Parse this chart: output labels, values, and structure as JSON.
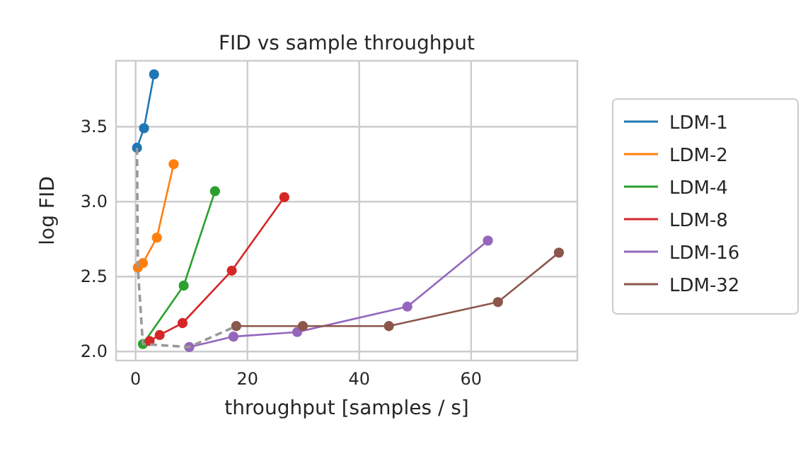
{
  "chart_data": {
    "type": "line",
    "title": "FID vs sample throughput",
    "xlabel": "throughput [samples / s]",
    "ylabel": "log FID",
    "xlim": [
      -3.5,
      79
    ],
    "ylim": [
      1.94,
      3.94
    ],
    "xticks": [
      0,
      20,
      40,
      60
    ],
    "yticks": [
      {
        "value": 2,
        "label": "2.0"
      },
      {
        "value": 2.5,
        "label": "2.5"
      },
      {
        "value": 3,
        "label": "3.0"
      },
      {
        "value": 3.5,
        "label": "3.5"
      }
    ],
    "grid": true,
    "legend": "right",
    "marker": "circle",
    "series": [
      {
        "name": "LDM-1",
        "color": "#1f77b4",
        "x": [
          0.25,
          1.5,
          3.3
        ],
        "values": [
          3.36,
          3.49,
          3.85
        ]
      },
      {
        "name": "LDM-2",
        "color": "#ff7f0e",
        "x": [
          0.4,
          1.3,
          3.8,
          6.8
        ],
        "values": [
          2.56,
          2.59,
          2.76,
          3.25
        ]
      },
      {
        "name": "LDM-4",
        "color": "#2ca02c",
        "x": [
          1.3,
          2.5,
          8.6,
          14.2
        ],
        "values": [
          2.05,
          null,
          2.44,
          3.07
        ]
      },
      {
        "name": "LDM-8",
        "color": "#d62728",
        "x": [
          2.5,
          4.3,
          8.4,
          17.2,
          26.6
        ],
        "values": [
          2.07,
          2.11,
          2.19,
          2.54,
          3.03
        ]
      },
      {
        "name": "LDM-16",
        "color": "#9467bd",
        "x": [
          9.6,
          17.5,
          28.9,
          48.6,
          63
        ],
        "values": [
          2.03,
          2.1,
          2.13,
          2.3,
          2.74
        ]
      },
      {
        "name": "LDM-32",
        "color": "#8c564b",
        "x": [
          18,
          29.9,
          45.3,
          64.8,
          75.7
        ],
        "values": [
          2.17,
          2.17,
          2.17,
          2.33,
          2.66
        ]
      },
      {
        "color": "#999999",
        "line_style": "dashed",
        "marker": "none",
        "x": [
          0.25,
          0.4,
          1.3,
          9.6,
          18
        ],
        "values": [
          3.36,
          2.56,
          2.05,
          2.03,
          2.17
        ]
      }
    ]
  }
}
